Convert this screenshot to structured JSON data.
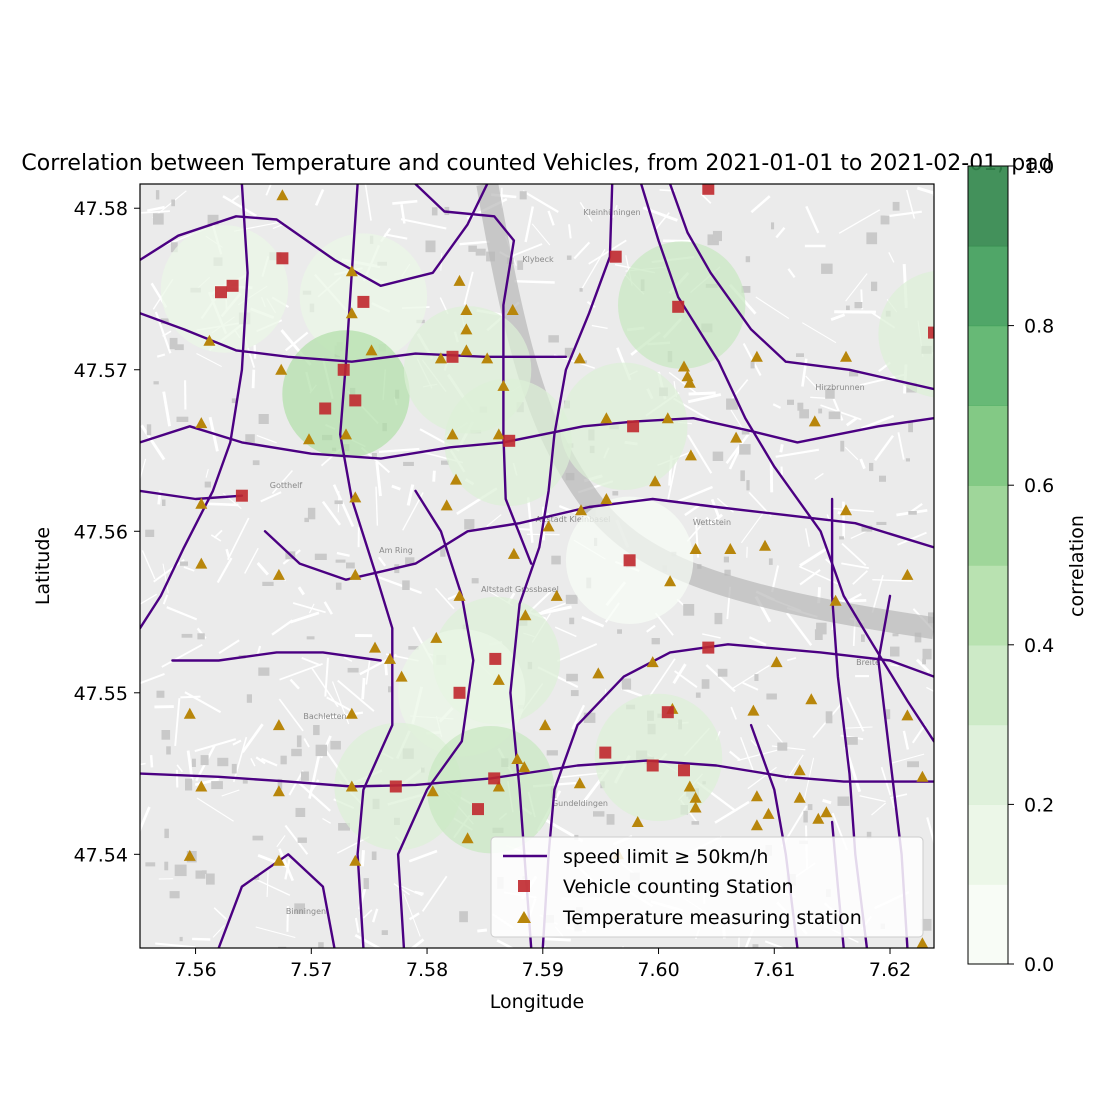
{
  "title": "Correlation between Temperature and counted Vehicles, from 2021-01-01 to 2021-02-01, pad",
  "map": {
    "xlabel": "Longitude",
    "ylabel": "Latitude",
    "xlim": [
      7.5552,
      7.6238
    ],
    "ylim": [
      47.5342,
      47.5815
    ],
    "x_ticks": [
      7.56,
      7.57,
      7.58,
      7.59,
      7.6,
      7.61,
      7.62
    ],
    "x_tick_labels": [
      "7.56",
      "7.57",
      "7.58",
      "7.59",
      "7.60",
      "7.61",
      "7.62"
    ],
    "y_ticks": [
      47.54,
      47.55,
      47.56,
      47.57,
      47.58
    ],
    "y_tick_labels": [
      "47.54",
      "47.55",
      "47.56",
      "47.57",
      "47.58"
    ],
    "basemap": "grayscale street map"
  },
  "map_labels": [
    "Kleinhüningen",
    "Klybeck",
    "Gotthelf",
    "Am Ring",
    "Altstadt Kleinbasel",
    "Wettstein",
    "Altstadt Grossbasel",
    "Bachletten",
    "Binningen",
    "Gundeldingen",
    "Breite",
    "Hirzbrunnen"
  ],
  "colorbar": {
    "label": "correlation",
    "ticks": [
      0.0,
      0.2,
      0.4,
      0.6,
      0.8,
      1.0
    ],
    "tick_labels": [
      "0.0",
      "0.2",
      "0.4",
      "0.6",
      "0.8",
      "1.0"
    ],
    "bands": [
      "#f7fcf5",
      "#eaf6e6",
      "#dcf0d7",
      "#c8e8c1",
      "#b1dfa9",
      "#95d28f",
      "#76c378",
      "#57b167",
      "#3d9c58",
      "#2f8549"
    ]
  },
  "legend": {
    "position": "lower right",
    "entries": [
      {
        "label": "speed limit ≥ 50km/h",
        "marker": "line",
        "color": "#4b0082"
      },
      {
        "label": "Vehicle counting Station",
        "marker": "square",
        "color": "#c0282d"
      },
      {
        "label": "Temperature measuring station",
        "marker": "triangle",
        "color": "#b8860b"
      }
    ]
  },
  "colors": {
    "road": "#4b0082",
    "vehicle": "#c0282d",
    "temperature": "#b8860b"
  },
  "chart_data": {
    "type": "scatter",
    "correlation_areas": [
      {
        "lon": 7.5625,
        "lat": 47.575,
        "corr": 0.12
      },
      {
        "lon": 7.5745,
        "lat": 47.5745,
        "corr": 0.15
      },
      {
        "lon": 7.573,
        "lat": 47.5685,
        "corr": 0.42
      },
      {
        "lon": 7.5835,
        "lat": 47.57,
        "corr": 0.22
      },
      {
        "lon": 7.587,
        "lat": 47.5655,
        "corr": 0.22
      },
      {
        "lon": 7.597,
        "lat": 47.5665,
        "corr": 0.2
      },
      {
        "lon": 7.602,
        "lat": 47.574,
        "corr": 0.36
      },
      {
        "lon": 7.6245,
        "lat": 47.5722,
        "corr": 0.25
      },
      {
        "lon": 7.5975,
        "lat": 47.5582,
        "corr": 0.05
      },
      {
        "lon": 7.586,
        "lat": 47.552,
        "corr": 0.2
      },
      {
        "lon": 7.583,
        "lat": 47.55,
        "corr": 0.18
      },
      {
        "lon": 7.6,
        "lat": 47.546,
        "corr": 0.25
      },
      {
        "lon": 7.5775,
        "lat": 47.5442,
        "corr": 0.27
      },
      {
        "lon": 7.5855,
        "lat": 47.544,
        "corr": 0.3
      }
    ],
    "vehicle_stations": [
      [
        7.5622,
        47.5748
      ],
      [
        7.5632,
        47.5752
      ],
      [
        7.5675,
        47.5769
      ],
      [
        7.5745,
        47.5742
      ],
      [
        7.5728,
        47.57
      ],
      [
        7.5712,
        47.5676
      ],
      [
        7.5738,
        47.5681
      ],
      [
        7.5822,
        47.5708
      ],
      [
        7.5871,
        47.5656
      ],
      [
        7.5978,
        47.5665
      ],
      [
        7.6017,
        47.5739
      ],
      [
        7.5963,
        47.577
      ],
      [
        7.6043,
        47.5812
      ],
      [
        7.6238,
        47.5723
      ],
      [
        7.564,
        47.5622
      ],
      [
        7.5975,
        47.5582
      ],
      [
        7.6043,
        47.5528
      ],
      [
        7.5859,
        47.5521
      ],
      [
        7.5828,
        47.55
      ],
      [
        7.6008,
        47.5488
      ],
      [
        7.5954,
        47.5463
      ],
      [
        7.5995,
        47.5455
      ],
      [
        7.6022,
        47.5452
      ],
      [
        7.5858,
        47.5447
      ],
      [
        7.5844,
        47.5428
      ],
      [
        7.5773,
        47.5442
      ]
    ],
    "temperature_stations": [
      [
        7.5675,
        47.5808
      ],
      [
        7.5735,
        47.5761
      ],
      [
        7.5828,
        47.5755
      ],
      [
        7.5735,
        47.5735
      ],
      [
        7.5834,
        47.5737
      ],
      [
        7.5834,
        47.5725
      ],
      [
        7.5612,
        47.5718
      ],
      [
        7.5752,
        47.5712
      ],
      [
        7.5812,
        47.5707
      ],
      [
        7.5834,
        47.5712
      ],
      [
        7.5852,
        47.5707
      ],
      [
        7.5866,
        47.569
      ],
      [
        7.5874,
        47.5737
      ],
      [
        7.5932,
        47.5707
      ],
      [
        7.5674,
        47.57
      ],
      [
        7.5698,
        47.5657
      ],
      [
        7.573,
        47.566
      ],
      [
        7.5822,
        47.566
      ],
      [
        7.5862,
        47.566
      ],
      [
        7.5955,
        47.567
      ],
      [
        7.6008,
        47.567
      ],
      [
        7.6022,
        47.5702
      ],
      [
        7.6025,
        47.5696
      ],
      [
        7.6027,
        47.5692
      ],
      [
        7.6085,
        47.5708
      ],
      [
        7.6162,
        47.5708
      ],
      [
        7.6067,
        47.5658
      ],
      [
        7.6028,
        47.5647
      ],
      [
        7.6135,
        47.5668
      ],
      [
        7.5605,
        47.5667
      ],
      [
        7.5605,
        47.5617
      ],
      [
        7.5738,
        47.5621
      ],
      [
        7.5817,
        47.5616
      ],
      [
        7.5825,
        47.5632
      ],
      [
        7.5905,
        47.5603
      ],
      [
        7.5933,
        47.5613
      ],
      [
        7.5955,
        47.562
      ],
      [
        7.5997,
        47.5631
      ],
      [
        7.6162,
        47.5613
      ],
      [
        7.5875,
        47.5586
      ],
      [
        7.6032,
        47.5589
      ],
      [
        7.6062,
        47.5589
      ],
      [
        7.6092,
        47.5591
      ],
      [
        7.601,
        47.5569
      ],
      [
        7.6153,
        47.5557
      ],
      [
        7.6215,
        47.5573
      ],
      [
        7.5605,
        47.558
      ],
      [
        7.5672,
        47.5573
      ],
      [
        7.5738,
        47.5573
      ],
      [
        7.5828,
        47.556
      ],
      [
        7.5912,
        47.556
      ],
      [
        7.5885,
        47.5548
      ],
      [
        7.5808,
        47.5534
      ],
      [
        7.5755,
        47.5528
      ],
      [
        7.5768,
        47.5521
      ],
      [
        7.5995,
        47.5519
      ],
      [
        7.5948,
        47.5512
      ],
      [
        7.6102,
        47.5519
      ],
      [
        7.5778,
        47.551
      ],
      [
        7.5862,
        47.5508
      ],
      [
        7.5595,
        47.5487
      ],
      [
        7.5735,
        47.5487
      ],
      [
        7.5672,
        47.548
      ],
      [
        7.5902,
        47.548
      ],
      [
        7.6012,
        47.549
      ],
      [
        7.6082,
        47.5489
      ],
      [
        7.6132,
        47.5496
      ],
      [
        7.6215,
        47.5486
      ],
      [
        7.5878,
        47.5459
      ],
      [
        7.5884,
        47.5454
      ],
      [
        7.5932,
        47.5444
      ],
      [
        7.5862,
        47.5442
      ],
      [
        7.6027,
        47.5442
      ],
      [
        7.6032,
        47.5435
      ],
      [
        7.6032,
        47.5429
      ],
      [
        7.6085,
        47.5436
      ],
      [
        7.6122,
        47.5435
      ],
      [
        7.6145,
        47.5426
      ],
      [
        7.6138,
        47.5422
      ],
      [
        7.6085,
        47.5418
      ],
      [
        7.6095,
        47.5425
      ],
      [
        7.5605,
        47.5442
      ],
      [
        7.5672,
        47.5439
      ],
      [
        7.5735,
        47.5442
      ],
      [
        7.5805,
        47.5439
      ],
      [
        7.5835,
        47.541
      ],
      [
        7.5965,
        47.54
      ],
      [
        7.5595,
        47.5399
      ],
      [
        7.5672,
        47.5396
      ],
      [
        7.5738,
        47.5396
      ],
      [
        7.6122,
        47.5452
      ],
      [
        7.6228,
        47.5448
      ],
      [
        7.5982,
        47.542
      ],
      [
        7.6228,
        47.5345
      ]
    ],
    "speed_roads": [
      [
        [
          7.5552,
          47.5768
        ],
        [
          7.5585,
          47.5783
        ],
        [
          7.5635,
          47.5795
        ],
        [
          7.567,
          47.5793
        ],
        [
          7.572,
          47.5768
        ],
        [
          7.576,
          47.5752
        ],
        [
          7.5805,
          47.576
        ],
        [
          7.5835,
          47.579
        ],
        [
          7.5852,
          47.5815
        ]
      ],
      [
        [
          7.579,
          47.5815
        ],
        [
          7.5815,
          47.5798
        ],
        [
          7.5858,
          47.5795
        ],
        [
          7.5875,
          47.578
        ],
        [
          7.5866,
          47.574
        ],
        [
          7.5866,
          47.566
        ],
        [
          7.5868,
          47.562
        ],
        [
          7.589,
          47.558
        ]
      ],
      [
        [
          7.596,
          47.5815
        ],
        [
          7.5958,
          47.577
        ],
        [
          7.594,
          47.5735
        ],
        [
          7.592,
          47.57
        ],
        [
          7.591,
          47.566
        ],
        [
          7.5905,
          47.5625
        ],
        [
          7.5897,
          47.559
        ],
        [
          7.588,
          47.5555
        ],
        [
          7.5872,
          47.55
        ],
        [
          7.588,
          47.544
        ],
        [
          7.589,
          47.5342
        ]
      ],
      [
        [
          7.5985,
          47.5815
        ],
        [
          7.6,
          47.578
        ],
        [
          7.6017,
          47.5745
        ],
        [
          7.6052,
          47.5705
        ],
        [
          7.6075,
          47.567
        ],
        [
          7.61,
          47.564
        ],
        [
          7.614,
          47.56
        ],
        [
          7.616,
          47.556
        ],
        [
          7.6185,
          47.553
        ],
        [
          7.6215,
          47.5495
        ],
        [
          7.6238,
          47.547
        ]
      ],
      [
        [
          7.601,
          47.5815
        ],
        [
          7.6025,
          47.5785
        ],
        [
          7.6045,
          47.576
        ],
        [
          7.608,
          47.5725
        ],
        [
          7.611,
          47.5705
        ],
        [
          7.6165,
          47.57
        ],
        [
          7.6238,
          47.5688
        ]
      ],
      [
        [
          7.5552,
          47.5735
        ],
        [
          7.559,
          47.5725
        ],
        [
          7.5635,
          47.5712
        ],
        [
          7.568,
          47.5708
        ],
        [
          7.5735,
          47.5705
        ],
        [
          7.579,
          47.571
        ],
        [
          7.585,
          47.5708
        ],
        [
          7.592,
          47.5708
        ]
      ],
      [
        [
          7.5552,
          47.5655
        ],
        [
          7.5595,
          47.5665
        ],
        [
          7.564,
          47.5655
        ],
        [
          7.57,
          47.5648
        ],
        [
          7.576,
          47.5645
        ],
        [
          7.582,
          47.5652
        ],
        [
          7.5866,
          47.5655
        ],
        [
          7.5935,
          47.5665
        ],
        [
          7.598,
          47.5668
        ],
        [
          7.603,
          47.567
        ],
        [
          7.608,
          47.5662
        ],
        [
          7.612,
          47.5655
        ],
        [
          7.619,
          47.5665
        ],
        [
          7.6238,
          47.567
        ]
      ],
      [
        [
          7.564,
          47.5815
        ],
        [
          7.5645,
          47.576
        ],
        [
          7.564,
          47.57
        ],
        [
          7.563,
          47.5655
        ],
        [
          7.5615,
          47.5625
        ],
        [
          7.559,
          47.559
        ],
        [
          7.557,
          47.556
        ],
        [
          7.5552,
          47.554
        ]
      ],
      [
        [
          7.574,
          47.5815
        ],
        [
          7.5735,
          47.576
        ],
        [
          7.573,
          47.5705
        ],
        [
          7.5725,
          47.566
        ],
        [
          7.5735,
          47.562
        ],
        [
          7.5755,
          47.5575
        ],
        [
          7.577,
          47.554
        ],
        [
          7.577,
          47.548
        ],
        [
          7.5745,
          47.544
        ],
        [
          7.574,
          47.54
        ],
        [
          7.5745,
          47.5342
        ]
      ],
      [
        [
          7.566,
          47.56
        ],
        [
          7.569,
          47.558
        ],
        [
          7.573,
          47.557
        ],
        [
          7.579,
          47.558
        ],
        [
          7.5835,
          47.56
        ],
        [
          7.588,
          47.5605
        ],
        [
          7.594,
          47.5615
        ],
        [
          7.5995,
          47.562
        ],
        [
          7.605,
          47.5615
        ],
        [
          7.611,
          47.561
        ],
        [
          7.617,
          47.5605
        ],
        [
          7.6238,
          47.559
        ]
      ],
      [
        [
          7.558,
          47.552
        ],
        [
          7.562,
          47.552
        ],
        [
          7.567,
          47.5525
        ],
        [
          7.571,
          47.5525
        ],
        [
          7.576,
          47.552
        ]
      ],
      [
        [
          7.5552,
          47.545
        ],
        [
          7.562,
          47.5448
        ],
        [
          7.568,
          47.5445
        ],
        [
          7.5735,
          47.5442
        ],
        [
          7.579,
          47.5443
        ],
        [
          7.5855,
          47.5447
        ],
        [
          7.593,
          47.5455
        ],
        [
          7.599,
          47.5458
        ],
        [
          7.605,
          47.5455
        ],
        [
          7.611,
          47.5448
        ],
        [
          7.616,
          47.5445
        ],
        [
          7.6238,
          47.5445
        ]
      ],
      [
        [
          7.59,
          47.5342
        ],
        [
          7.5905,
          47.54
        ],
        [
          7.591,
          47.544
        ],
        [
          7.593,
          47.548
        ],
        [
          7.597,
          47.551
        ],
        [
          7.601,
          47.5525
        ],
        [
          7.606,
          47.553
        ],
        [
          7.614,
          47.5525
        ],
        [
          7.62,
          47.552
        ],
        [
          7.6238,
          47.551
        ]
      ],
      [
        [
          7.618,
          47.5342
        ],
        [
          7.617,
          47.54
        ],
        [
          7.6165,
          47.545
        ],
        [
          7.6155,
          47.551
        ],
        [
          7.615,
          47.556
        ],
        [
          7.615,
          47.562
        ]
      ],
      [
        [
          7.6215,
          47.5342
        ],
        [
          7.621,
          47.54
        ],
        [
          7.62,
          47.546
        ],
        [
          7.619,
          47.552
        ],
        [
          7.62,
          47.556
        ]
      ],
      [
        [
          7.562,
          47.5342
        ],
        [
          7.564,
          47.538
        ],
        [
          7.568,
          47.54
        ],
        [
          7.571,
          47.538
        ],
        [
          7.572,
          47.5342
        ]
      ],
      [
        [
          7.578,
          47.5342
        ],
        [
          7.5775,
          47.54
        ],
        [
          7.58,
          47.544
        ],
        [
          7.583,
          47.547
        ],
        [
          7.584,
          47.552
        ],
        [
          7.583,
          47.556
        ],
        [
          7.5812,
          47.56
        ],
        [
          7.579,
          47.5625
        ]
      ],
      [
        [
          7.608,
          47.548
        ],
        [
          7.61,
          47.544
        ],
        [
          7.611,
          47.54
        ],
        [
          7.612,
          47.5342
        ]
      ],
      [
        [
          7.5552,
          47.5625
        ],
        [
          7.56,
          47.562
        ],
        [
          7.564,
          47.5622
        ]
      ],
      [
        [
          7.616,
          47.5342
        ],
        [
          7.6155,
          47.538
        ],
        [
          7.615,
          47.542
        ]
      ]
    ]
  }
}
